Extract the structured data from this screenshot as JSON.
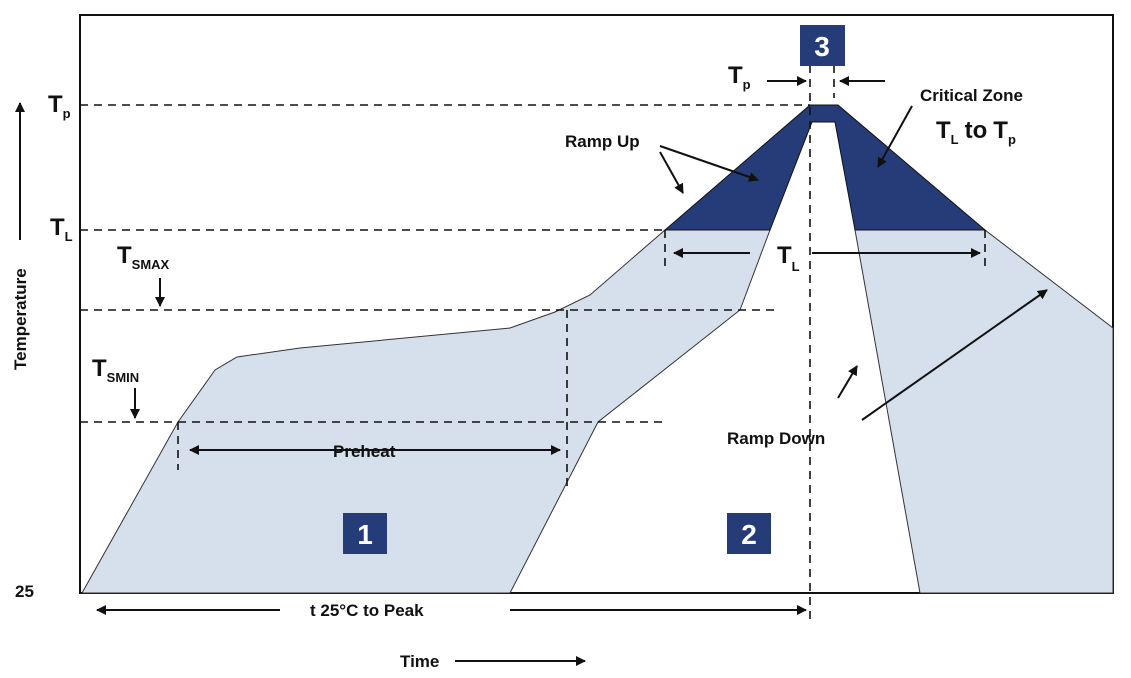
{
  "colors": {
    "preheat_fill": "#d6dfec",
    "critical_fill": "#253c78",
    "zone_badge": "#253c78"
  },
  "y_axis": {
    "label": "Temperature",
    "baseline": "25",
    "levels": [
      {
        "main": "T",
        "sub": "p"
      },
      {
        "main": "T",
        "sub": "L"
      },
      {
        "main": "T",
        "sub": "SMAX"
      },
      {
        "main": "T",
        "sub": "SMIN"
      }
    ]
  },
  "x_axis": {
    "label": "Time",
    "span_label": "t 25°C to Peak"
  },
  "annotations": {
    "preheat": "Preheat",
    "ramp_up": "Ramp Up",
    "ramp_down": "Ramp Down",
    "critical_zone": "Critical Zone",
    "critical_range": {
      "a": "T",
      "a_sub": "L",
      "mid": "to",
      "b": "T",
      "b_sub": "p"
    },
    "tp_width": {
      "main": "T",
      "sub": "p"
    },
    "tl_width": {
      "main": "T",
      "sub": "L"
    }
  },
  "zones": [
    "1",
    "2",
    "3"
  ]
}
